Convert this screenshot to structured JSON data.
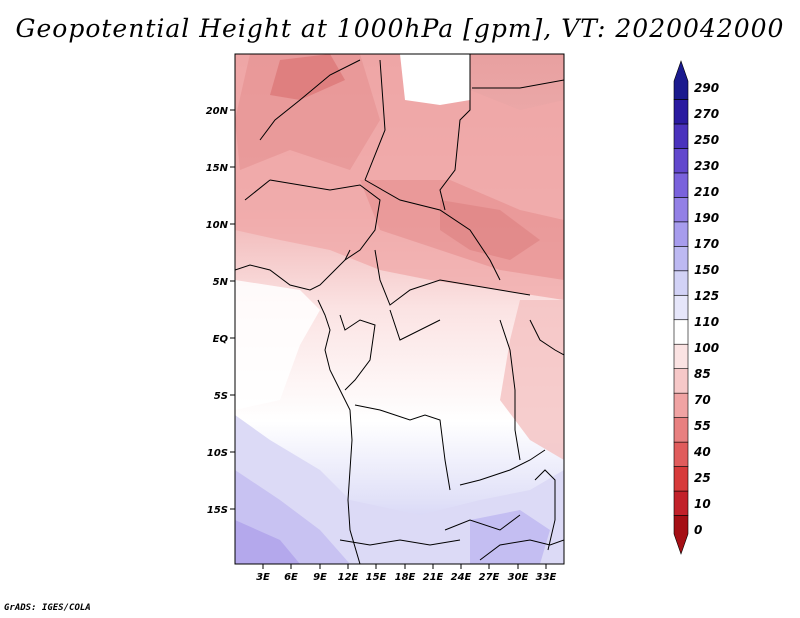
{
  "title": "Geopotential Height at 1000hPa [gpm], VT: 2020042000",
  "credit": "GrADS: IGES/COLA",
  "lat_labels": [
    "20N",
    "15N",
    "10N",
    "5N",
    "EQ",
    "5S",
    "10S",
    "15S"
  ],
  "lon_labels": [
    "3E",
    "6E",
    "9E",
    "12E",
    "15E",
    "18E",
    "21E",
    "24E",
    "27E",
    "30E",
    "33E"
  ],
  "colorbar": {
    "labels": [
      "290",
      "270",
      "250",
      "230",
      "210",
      "190",
      "170",
      "150",
      "125",
      "110",
      "100",
      "85",
      "70",
      "55",
      "40",
      "25",
      "10",
      "0"
    ],
    "colors_bottom_to_top": [
      "#a50f15",
      "#c2212a",
      "#d73a3a",
      "#e05c5c",
      "#e88080",
      "#f0a3a3",
      "#f6c8c8",
      "#fbe3e3",
      "#ffffff",
      "#e6e6fa",
      "#d2d2f6",
      "#bdb9f2",
      "#a79ced",
      "#9380e6",
      "#7a62dc",
      "#6248cd",
      "#4a32bd",
      "#2a1aa0",
      "#1b1a8e"
    ],
    "units": "gpm"
  },
  "map": {
    "region": "Central Africa",
    "lon_range": [
      0,
      35
    ],
    "lat_range": [
      -20,
      25
    ]
  }
}
